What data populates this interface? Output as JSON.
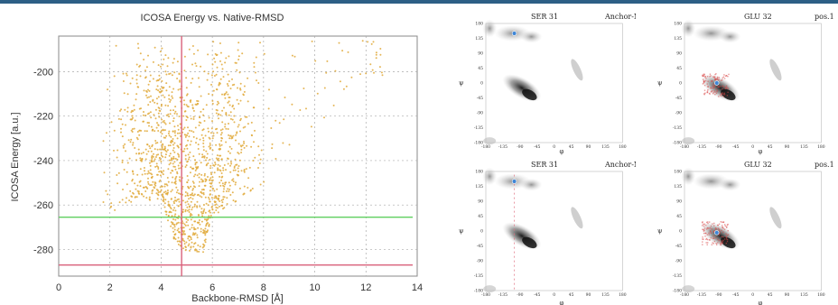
{
  "chart_data": [
    {
      "type": "scatter",
      "title": "ICOSA Energy vs. Native-RMSD",
      "xlabel": "Backbone-RMSD [Å]",
      "ylabel": "ICOSA Energy [a.u.]",
      "xlim": [
        0,
        14
      ],
      "ylim": [
        -292,
        -184
      ],
      "x_ticks": [
        "0",
        "2",
        "4",
        "6",
        "8",
        "10",
        "12",
        "14"
      ],
      "y_ticks": [
        "-200",
        "-220",
        "-240",
        "-260",
        "-280"
      ],
      "grid": true,
      "point_color": "#e0a93a",
      "reference_lines": [
        {
          "orientation": "horizontal",
          "value": -265.5,
          "color": "#5fcf5f"
        },
        {
          "orientation": "horizontal",
          "value": -287,
          "color": "#d9607a"
        },
        {
          "orientation": "vertical",
          "value": 4.8,
          "color": "#d9607a"
        }
      ],
      "points": {
        "count": 1400,
        "description_x_range": [
          1.7,
          12.8
        ],
        "density_peak_x": 5,
        "min_energy_by_x": [
          [
            1.7,
            -268
          ],
          [
            3,
            -258
          ],
          [
            4,
            -258
          ],
          [
            4.5,
            -276
          ],
          [
            5,
            -281
          ],
          [
            5.6,
            -283
          ],
          [
            6,
            -266
          ],
          [
            7,
            -258
          ],
          [
            8,
            -250
          ],
          [
            9,
            -236
          ],
          [
            10,
            -228
          ],
          [
            11,
            -212
          ],
          [
            12,
            -202
          ]
        ]
      }
    },
    {
      "type": "heatmap",
      "title": "SER 31",
      "subtitle": "Anchor-Nt",
      "xlabel": "φ",
      "ylabel": "ψ",
      "xlim": [
        -180,
        180
      ],
      "ylim": [
        -180,
        180
      ],
      "ticks": [
        "-180",
        "-135",
        "-90",
        "-45",
        "0",
        "45",
        "90",
        "135",
        "180"
      ],
      "marker": {
        "phi": -105,
        "psi": 150,
        "color": "#3f86d6"
      }
    },
    {
      "type": "heatmap",
      "title": "GLU 32",
      "subtitle": "pos.1",
      "xlabel": "φ",
      "ylabel": "ψ",
      "xlim": [
        -180,
        180
      ],
      "ylim": [
        -180,
        180
      ],
      "ticks": [
        "-180",
        "-135",
        "-90",
        "-45",
        "0",
        "45",
        "90",
        "135",
        "180"
      ],
      "marker": {
        "phi": -95,
        "psi": 0,
        "color": "#3f86d6"
      }
    },
    {
      "type": "heatmap",
      "title": "SER 31",
      "subtitle": "Anchor-Nt",
      "xlabel": "φ",
      "ylabel": "ψ",
      "xlim": [
        -180,
        180
      ],
      "ylim": [
        -180,
        180
      ],
      "ticks": [
        "-180",
        "-135",
        "-90",
        "-45",
        "0",
        "45",
        "90",
        "135",
        "180"
      ],
      "marker": {
        "phi": -105,
        "psi": 150,
        "color": "#3f86d6"
      }
    },
    {
      "type": "heatmap",
      "title": "GLU 32",
      "subtitle": "pos.1",
      "xlabel": "φ",
      "ylabel": "ψ",
      "xlim": [
        -180,
        180
      ],
      "ylim": [
        -180,
        180
      ],
      "ticks": [
        "-180",
        "-135",
        "-90",
        "-45",
        "0",
        "45",
        "90",
        "135",
        "180"
      ],
      "marker": {
        "phi": -95,
        "psi": -5,
        "color": "#3f86d6"
      }
    }
  ]
}
